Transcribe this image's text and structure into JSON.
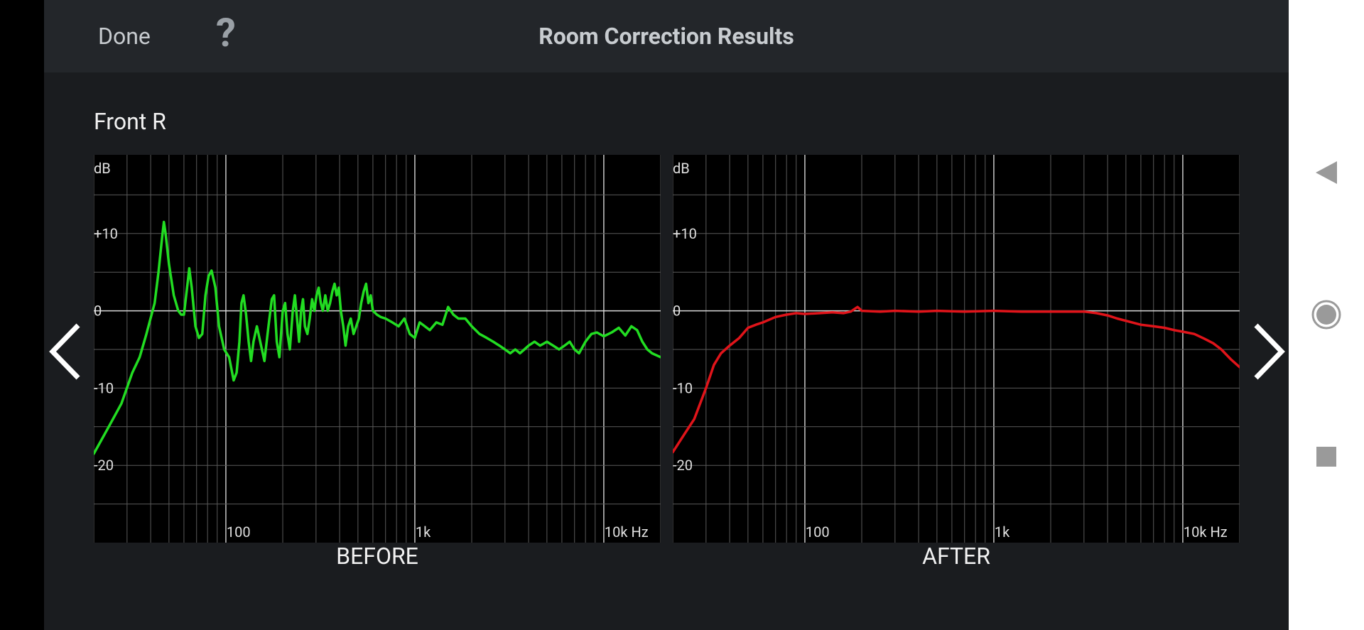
{
  "header": {
    "done_label": "Done",
    "help_label": "?",
    "title": "Room Correction Results"
  },
  "channel_name": "Front R",
  "icons": {
    "prev": "chevron-left-icon",
    "next": "chevron-right-icon",
    "back": "back-triangle-icon",
    "home": "home-circle-icon",
    "recents": "recents-square-icon"
  },
  "colors": {
    "background": "#1a1c1f",
    "header": "#23262a",
    "before_curve": "#22dd22",
    "after_curve": "#e0141a"
  },
  "chart_data": [
    {
      "type": "line",
      "title": "BEFORE",
      "ylabel": "dB",
      "xlabel": "",
      "x_scale": "log",
      "xlim": [
        20,
        20000
      ],
      "ylim": [
        -30,
        20
      ],
      "x_ticks": [
        {
          "value": 100,
          "label": "100"
        },
        {
          "value": 1000,
          "label": "1k"
        },
        {
          "value": 10000,
          "label": "10k Hz"
        }
      ],
      "y_ticks": [
        {
          "value": 10,
          "label": "+10"
        },
        {
          "value": 0,
          "label": "0"
        },
        {
          "value": -10,
          "label": "-10"
        },
        {
          "value": -20,
          "label": "-20"
        }
      ],
      "grid": true,
      "series": [
        {
          "color": "#22dd22",
          "points": [
            [
              20,
              -18.5
            ],
            [
              24,
              -15
            ],
            [
              28,
              -12
            ],
            [
              32,
              -8
            ],
            [
              35,
              -6
            ],
            [
              38,
              -3
            ],
            [
              42,
              1
            ],
            [
              44,
              5
            ],
            [
              46,
              9.5
            ],
            [
              47,
              11.5
            ],
            [
              48,
              10
            ],
            [
              50,
              6
            ],
            [
              53,
              2
            ],
            [
              56,
              0
            ],
            [
              58,
              -0.5
            ],
            [
              60,
              -0.5
            ],
            [
              63,
              4
            ],
            [
              64,
              5.5
            ],
            [
              66,
              3
            ],
            [
              69,
              -2
            ],
            [
              72,
              -3.5
            ],
            [
              75,
              -3
            ],
            [
              78,
              2
            ],
            [
              81,
              4.5
            ],
            [
              84,
              5.2
            ],
            [
              88,
              3
            ],
            [
              92,
              -2
            ],
            [
              98,
              -5
            ],
            [
              104,
              -6
            ],
            [
              110,
              -9
            ],
            [
              114,
              -8
            ],
            [
              118,
              -4
            ],
            [
              121,
              1
            ],
            [
              124,
              2
            ],
            [
              128,
              -0.5
            ],
            [
              132,
              -4
            ],
            [
              136,
              -6.5
            ],
            [
              140,
              -4
            ],
            [
              146,
              -2
            ],
            [
              152,
              -4
            ],
            [
              160,
              -6.5
            ],
            [
              168,
              -2
            ],
            [
              175,
              1.5
            ],
            [
              180,
              2
            ],
            [
              186,
              -4
            ],
            [
              192,
              -6
            ],
            [
              200,
              0
            ],
            [
              206,
              1
            ],
            [
              212,
              -3
            ],
            [
              218,
              -5
            ],
            [
              226,
              0
            ],
            [
              232,
              2
            ],
            [
              238,
              -1
            ],
            [
              244,
              -4
            ],
            [
              250,
              0
            ],
            [
              256,
              1.5
            ],
            [
              262,
              -2
            ],
            [
              270,
              -3
            ],
            [
              278,
              -1
            ],
            [
              286,
              1.5
            ],
            [
              294,
              0
            ],
            [
              302,
              2
            ],
            [
              310,
              3
            ],
            [
              318,
              1
            ],
            [
              326,
              0
            ],
            [
              336,
              2
            ],
            [
              346,
              0
            ],
            [
              356,
              1
            ],
            [
              366,
              2.5
            ],
            [
              376,
              3.5
            ],
            [
              386,
              2
            ],
            [
              396,
              3
            ],
            [
              406,
              0
            ],
            [
              418,
              -2
            ],
            [
              430,
              -4.5
            ],
            [
              444,
              -2
            ],
            [
              458,
              -1
            ],
            [
              474,
              -3
            ],
            [
              490,
              -2
            ],
            [
              506,
              -1
            ],
            [
              520,
              1
            ],
            [
              536,
              2.5
            ],
            [
              552,
              3.5
            ],
            [
              568,
              1
            ],
            [
              584,
              2
            ],
            [
              600,
              0
            ],
            [
              630,
              -0.5
            ],
            [
              660,
              -0.8
            ],
            [
              700,
              -1
            ],
            [
              760,
              -1.5
            ],
            [
              820,
              -2
            ],
            [
              880,
              -1
            ],
            [
              940,
              -3
            ],
            [
              1000,
              -3.5
            ],
            [
              1060,
              -1.5
            ],
            [
              1130,
              -2
            ],
            [
              1200,
              -2.5
            ],
            [
              1300,
              -1.5
            ],
            [
              1400,
              -1.8
            ],
            [
              1500,
              0.5
            ],
            [
              1600,
              -0.5
            ],
            [
              1700,
              -1
            ],
            [
              1850,
              -1
            ],
            [
              2000,
              -2
            ],
            [
              2200,
              -3
            ],
            [
              2400,
              -3.5
            ],
            [
              2600,
              -4
            ],
            [
              2800,
              -4.5
            ],
            [
              3000,
              -5
            ],
            [
              3200,
              -5.5
            ],
            [
              3400,
              -5
            ],
            [
              3600,
              -5.5
            ],
            [
              3800,
              -5
            ],
            [
              4000,
              -4.5
            ],
            [
              4300,
              -4
            ],
            [
              4600,
              -4.5
            ],
            [
              5000,
              -4
            ],
            [
              5400,
              -4.5
            ],
            [
              5800,
              -5
            ],
            [
              6200,
              -4.5
            ],
            [
              6600,
              -4
            ],
            [
              7000,
              -5
            ],
            [
              7400,
              -5.5
            ],
            [
              8000,
              -4
            ],
            [
              8600,
              -3
            ],
            [
              9200,
              -2.8
            ],
            [
              10000,
              -3.3
            ],
            [
              11000,
              -2.8
            ],
            [
              12000,
              -2.2
            ],
            [
              13000,
              -3.2
            ],
            [
              14000,
              -2
            ],
            [
              15000,
              -2.5
            ],
            [
              16000,
              -4
            ],
            [
              17000,
              -5
            ],
            [
              18000,
              -5.5
            ],
            [
              20000,
              -6
            ]
          ]
        }
      ]
    },
    {
      "type": "line",
      "title": "AFTER",
      "ylabel": "dB",
      "xlabel": "",
      "x_scale": "log",
      "xlim": [
        20,
        20000
      ],
      "ylim": [
        -30,
        20
      ],
      "x_ticks": [
        {
          "value": 100,
          "label": "100"
        },
        {
          "value": 1000,
          "label": "1k"
        },
        {
          "value": 10000,
          "label": "10k Hz"
        }
      ],
      "y_ticks": [
        {
          "value": 10,
          "label": "+10"
        },
        {
          "value": 0,
          "label": "0"
        },
        {
          "value": -10,
          "label": "-10"
        },
        {
          "value": -20,
          "label": "-20"
        }
      ],
      "grid": true,
      "series": [
        {
          "color": "#e0141a",
          "points": [
            [
              20,
              -18.3
            ],
            [
              23,
              -16
            ],
            [
              26,
              -14
            ],
            [
              30,
              -10
            ],
            [
              33,
              -7
            ],
            [
              36,
              -5.5
            ],
            [
              40,
              -4.5
            ],
            [
              45,
              -3.5
            ],
            [
              50,
              -2.2
            ],
            [
              55,
              -1.8
            ],
            [
              60,
              -1.5
            ],
            [
              70,
              -0.8
            ],
            [
              80,
              -0.5
            ],
            [
              90,
              -0.3
            ],
            [
              100,
              -0.4
            ],
            [
              120,
              -0.3
            ],
            [
              140,
              -0.2
            ],
            [
              160,
              -0.3
            ],
            [
              175,
              -0.1
            ],
            [
              190,
              0.5
            ],
            [
              200,
              0
            ],
            [
              250,
              -0.1
            ],
            [
              300,
              0
            ],
            [
              400,
              -0.1
            ],
            [
              500,
              0
            ],
            [
              700,
              -0.1
            ],
            [
              1000,
              0
            ],
            [
              1400,
              -0.1
            ],
            [
              2000,
              -0.1
            ],
            [
              2500,
              -0.1
            ],
            [
              3000,
              -0.1
            ],
            [
              3500,
              -0.3
            ],
            [
              4000,
              -0.6
            ],
            [
              4500,
              -1
            ],
            [
              5000,
              -1.3
            ],
            [
              6000,
              -1.8
            ],
            [
              7000,
              -2
            ],
            [
              8000,
              -2.2
            ],
            [
              9000,
              -2.5
            ],
            [
              10000,
              -2.7
            ],
            [
              11500,
              -3
            ],
            [
              13000,
              -3.6
            ],
            [
              14500,
              -4.2
            ],
            [
              16000,
              -5
            ],
            [
              18000,
              -6.3
            ],
            [
              20000,
              -7.3
            ]
          ]
        }
      ]
    }
  ]
}
